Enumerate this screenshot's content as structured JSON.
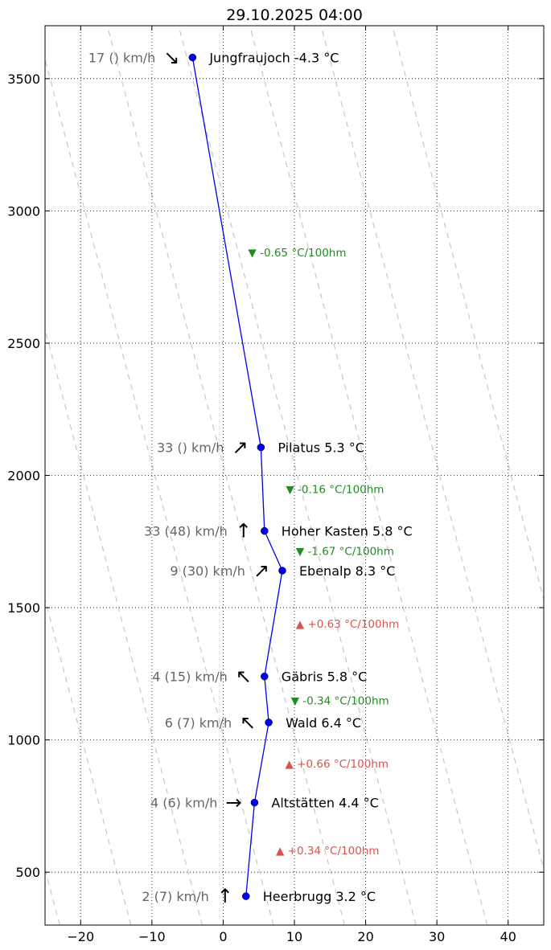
{
  "chart_data": {
    "type": "line",
    "title": "29.10.2025 04:00",
    "xlabel": "",
    "ylabel": "",
    "xlim": [
      -25,
      45
    ],
    "ylim": [
      300,
      3700
    ],
    "x_ticks": [
      -20,
      -10,
      0,
      10,
      20,
      30,
      40
    ],
    "x_tick_labels": [
      "−20",
      "−10",
      "0",
      "10",
      "20",
      "30",
      "40"
    ],
    "y_ticks": [
      500,
      1000,
      1500,
      2000,
      2500,
      3000,
      3500
    ],
    "y_tick_labels": [
      "500",
      "1000",
      "1500",
      "2000",
      "2500",
      "3000",
      "3500"
    ],
    "grid": true,
    "line_color": "#0000ee",
    "dry_adiabat_color": "#c8c8c8",
    "dry_adiabats": [
      -30,
      -20,
      -10,
      0,
      10,
      20,
      30,
      40,
      50,
      60
    ],
    "stations": [
      {
        "name": "Heerbrugg",
        "label": "Heerbrugg 3.2 °C",
        "temperature": 3.2,
        "altitude": 409,
        "wind_label": "2 (7) km/h",
        "wind_arrow": "↑"
      },
      {
        "name": "Altstätten",
        "label": "Altstätten 4.4 °C",
        "temperature": 4.4,
        "altitude": 763,
        "wind_label": "4 (6) km/h",
        "wind_arrow": "→"
      },
      {
        "name": "Wald",
        "label": "Wald 6.4 °C",
        "temperature": 6.4,
        "altitude": 1066,
        "wind_label": "6 (7) km/h",
        "wind_arrow": "↖"
      },
      {
        "name": "Gäbris",
        "label": "Gäbris 5.8 °C",
        "temperature": 5.8,
        "altitude": 1240,
        "wind_label": "4 (15) km/h",
        "wind_arrow": "↖"
      },
      {
        "name": "Ebenalp",
        "label": "Ebenalp 8.3 °C",
        "temperature": 8.3,
        "altitude": 1640,
        "wind_label": "9 (30) km/h",
        "wind_arrow": "↗"
      },
      {
        "name": "Hoher Kasten",
        "label": "Hoher Kasten 5.8 °C",
        "temperature": 5.8,
        "altitude": 1790,
        "wind_label": "33 (48) km/h",
        "wind_arrow": "↑"
      },
      {
        "name": "Pilatus",
        "label": "Pilatus 5.3 °C",
        "temperature": 5.3,
        "altitude": 2106,
        "wind_label": "33 () km/h",
        "wind_arrow": "↗"
      },
      {
        "name": "Jungfraujoch",
        "label": "Jungfraujoch -4.3 °C",
        "temperature": -4.3,
        "altitude": 3580,
        "wind_label": "17 () km/h",
        "wind_arrow": "↘"
      }
    ],
    "gradients": [
      {
        "text": "▲ +0.34 °C/100hm",
        "direction": "up",
        "x": 7.4,
        "altitude": 583,
        "color": "#d9534f"
      },
      {
        "text": "▲ +0.66 °C/100hm",
        "direction": "up",
        "x": 8.7,
        "altitude": 910,
        "color": "#d9534f"
      },
      {
        "text": "▼ -0.34 °C/100hm",
        "direction": "down",
        "x": 9.5,
        "altitude": 1150,
        "color": "#228b22"
      },
      {
        "text": "▲ +0.63 °C/100hm",
        "direction": "up",
        "x": 10.2,
        "altitude": 1440,
        "color": "#d9534f"
      },
      {
        "text": "▼ -1.67 °C/100hm",
        "direction": "down",
        "x": 10.2,
        "altitude": 1715,
        "color": "#228b22"
      },
      {
        "text": "▼ -0.16 °C/100hm",
        "direction": "down",
        "x": 8.8,
        "altitude": 1948,
        "color": "#228b22"
      },
      {
        "text": "▼ -0.65 °C/100hm",
        "direction": "down",
        "x": 3.5,
        "altitude": 2843,
        "color": "#228b22"
      }
    ]
  }
}
